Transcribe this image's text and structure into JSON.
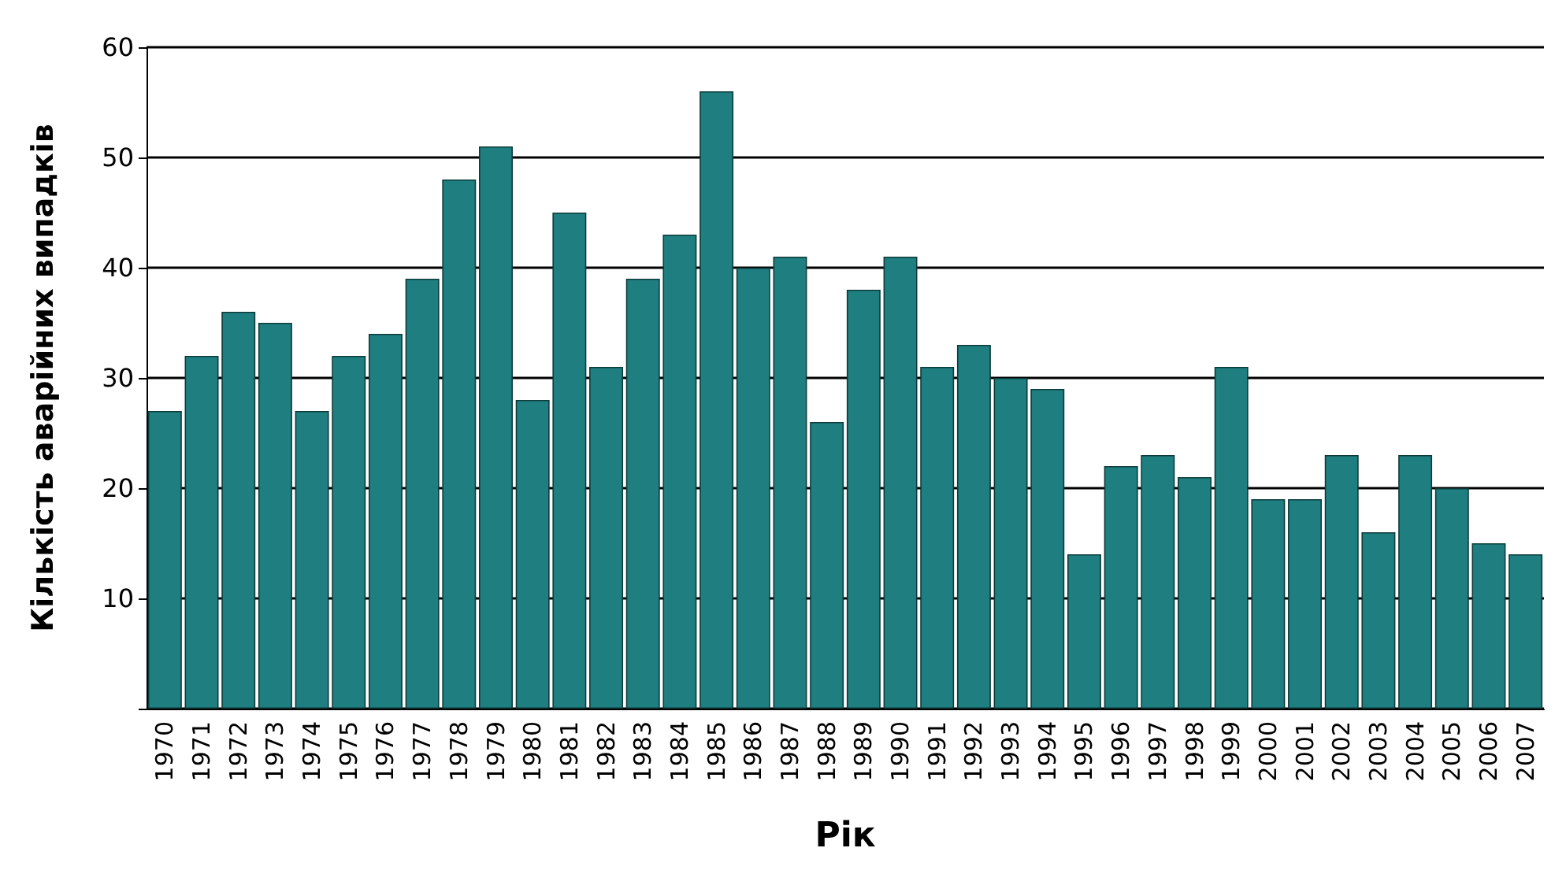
{
  "chart_data": {
    "type": "bar",
    "xlabel": "Рік",
    "ylabel": "Кількість аварійних випадків",
    "categories": [
      "1970",
      "1971",
      "1972",
      "1973",
      "1974",
      "1975",
      "1976",
      "1977",
      "1978",
      "1979",
      "1980",
      "1981",
      "1982",
      "1983",
      "1984",
      "1985",
      "1986",
      "1987",
      "1988",
      "1989",
      "1990",
      "1991",
      "1992",
      "1993",
      "1994",
      "1995",
      "1996",
      "1997",
      "1998",
      "1999",
      "2000",
      "2001",
      "2002",
      "2003",
      "2004",
      "2005",
      "2006",
      "2007"
    ],
    "values": [
      27,
      32,
      36,
      35,
      27,
      32,
      34,
      39,
      48,
      51,
      28,
      45,
      31,
      39,
      43,
      56,
      40,
      41,
      26,
      38,
      41,
      31,
      33,
      30,
      29,
      14,
      22,
      23,
      21,
      31,
      19,
      19,
      23,
      16,
      23,
      20,
      15,
      14
    ],
    "color": "#1f7f80",
    "ylim": [
      0,
      60
    ],
    "yticks": [
      {
        "value": 0,
        "label": null
      },
      10,
      20,
      30,
      40,
      50,
      60
    ],
    "grid": "y"
  }
}
